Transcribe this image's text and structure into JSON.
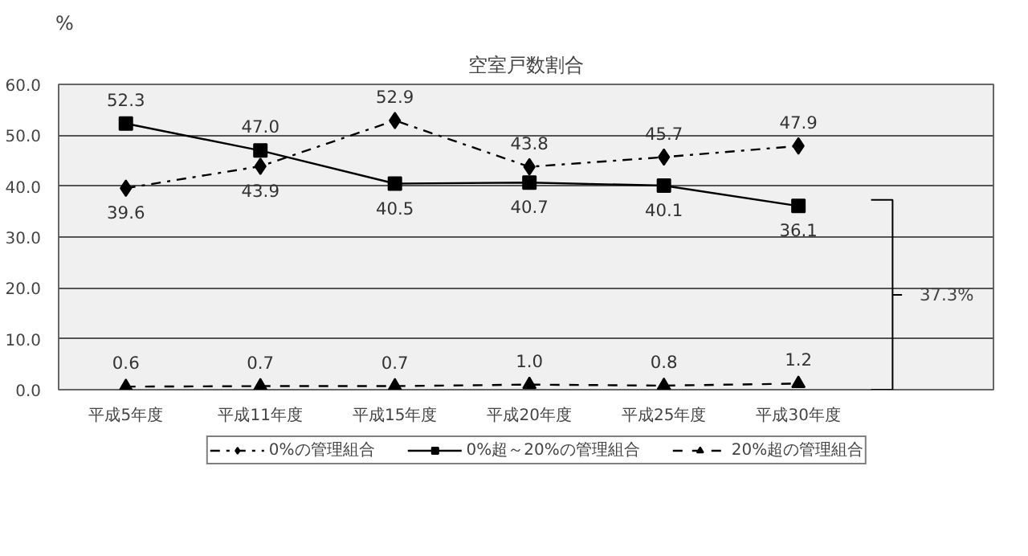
{
  "chart_data": {
    "type": "line",
    "title": "空室戸数割合",
    "ylabel": "%",
    "categories": [
      "平成5年度",
      "平成11年度",
      "平成15年度",
      "平成20年度",
      "平成25年度",
      "平成30年度"
    ],
    "series": [
      {
        "name": "0%の管理組合",
        "color": "#000000",
        "marker": "diamond",
        "line_style": "dashdot",
        "values": [
          39.6,
          43.9,
          52.9,
          43.8,
          45.7,
          47.9
        ],
        "value_labels": [
          "39.6",
          "43.9",
          "52.9",
          "43.8",
          "45.7",
          "47.9"
        ]
      },
      {
        "name": "0%超～20%の管理組合",
        "color": "#000000",
        "marker": "square",
        "line_style": "solid",
        "values": [
          52.3,
          47.0,
          40.5,
          40.7,
          40.1,
          36.1
        ],
        "value_labels": [
          "52.3",
          "47.0",
          "40.5",
          "40.7",
          "40.1",
          "36.1"
        ]
      },
      {
        "name": "20%超の管理組合",
        "color": "#000000",
        "marker": "triangle",
        "line_style": "dashed",
        "values": [
          0.6,
          0.7,
          0.7,
          1.0,
          0.8,
          1.2
        ],
        "value_labels": [
          "0.6",
          "0.7",
          "0.7",
          "1.0",
          "0.8",
          "1.2"
        ]
      }
    ],
    "ylim": [
      0,
      60
    ],
    "yticks": [
      {
        "value": 0,
        "label": "0.0"
      },
      {
        "value": 10,
        "label": "10.0"
      },
      {
        "value": 20,
        "label": "20.0"
      },
      {
        "value": 30,
        "label": "30.0"
      },
      {
        "value": 40,
        "label": "40.0"
      },
      {
        "value": 50,
        "label": "50.0"
      },
      {
        "value": 60,
        "label": "60.0"
      }
    ],
    "grid": "y",
    "legend": "bottom",
    "annotations": [
      "37.3%"
    ]
  }
}
